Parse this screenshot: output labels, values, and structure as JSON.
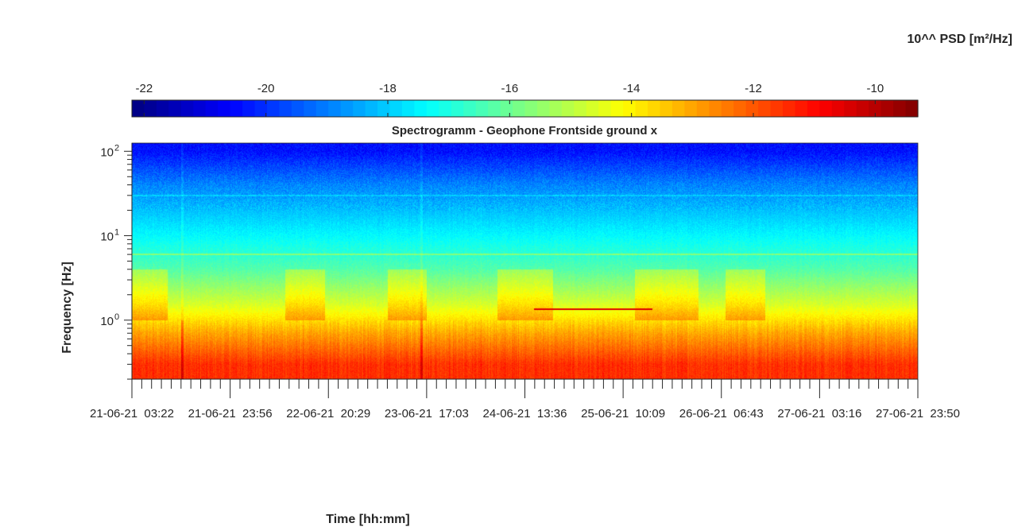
{
  "chart_data": {
    "type": "heatmap",
    "title": "Spectrogramm - Geophone Frontside ground x",
    "xlabel": "Time [hh:mm]",
    "ylabel": "Frequency [Hz]",
    "y_scale": "log",
    "ylim": [
      0.2,
      125
    ],
    "y_ticks": [
      {
        "value": 1,
        "label": "10",
        "exp": "0"
      },
      {
        "value": 10,
        "label": "10",
        "exp": "1"
      },
      {
        "value": 100,
        "label": "10",
        "exp": "2"
      }
    ],
    "x_tick_labels": [
      "21-06-21  03:22",
      "21-06-21  23:56",
      "22-06-21  20:29",
      "23-06-21  17:03",
      "24-06-21  13:36",
      "25-06-21  10:09",
      "26-06-21  06:43",
      "27-06-21  03:16",
      "27-06-21  23:50"
    ],
    "colorbar": {
      "label": "10^^ PSD [m²/Hz]",
      "location": "top",
      "colormap": "jet",
      "range": [
        -22.2,
        -9.3
      ],
      "ticks": [
        -22,
        -20,
        -18,
        -16,
        -14,
        -12,
        -10
      ]
    },
    "features": [
      {
        "name": "narrowband line",
        "frequency_hz": 6,
        "time": "entire record"
      },
      {
        "name": "narrowband line",
        "frequency_hz": 30,
        "time": "entire record"
      },
      {
        "name": "high-PSD line",
        "frequency_hz": 1.35,
        "psd_log10": -10.5,
        "time_span": [
          "24-06-21 ~04:00",
          "25-06-21 ~14:30"
        ]
      },
      {
        "name": "broadband transient",
        "time": "21-06-21 ~13:00"
      },
      {
        "name": "broadband transient",
        "time": "23-06-21 ~16:00"
      }
    ],
    "background_psd_log10": [
      {
        "frequency_hz": 100,
        "psd_log10": -20.4
      },
      {
        "frequency_hz": 40,
        "psd_log10": -18.9
      },
      {
        "frequency_hz": 10,
        "psd_log10": -17.4
      },
      {
        "frequency_hz": 4,
        "psd_log10": -16.3
      },
      {
        "frequency_hz": 1.5,
        "psd_log10": -14.6
      },
      {
        "frequency_hz": 0.7,
        "psd_log10": -13.0
      },
      {
        "frequency_hz": 0.3,
        "psd_log10": -11.5
      }
    ]
  }
}
